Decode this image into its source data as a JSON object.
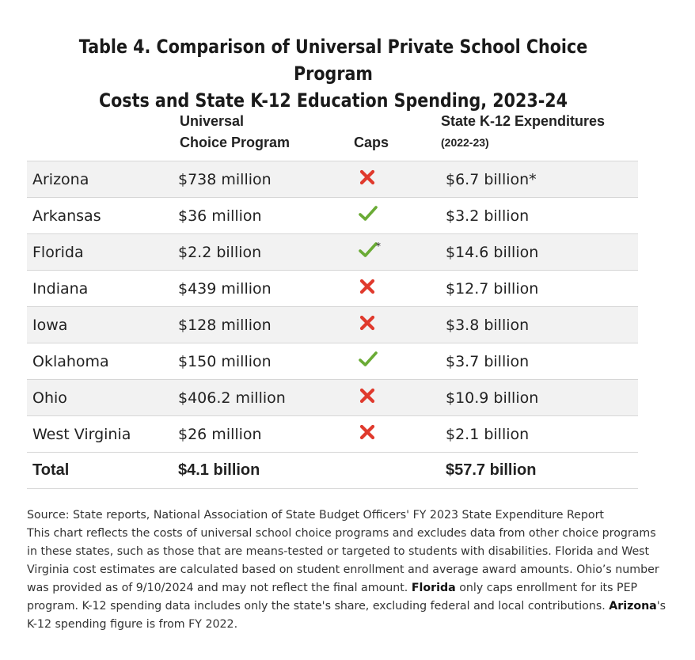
{
  "title": {
    "line1": "Table 4. Comparison of Universal Private School Choice Program",
    "line2": "Costs and State K-12 Education Spending, 2023-24"
  },
  "headers": {
    "program_line1": "Universal",
    "program_line2": "Choice Program",
    "caps": "Caps",
    "expend": "State K-12 Expenditures",
    "expend_sub": "(2022-23)"
  },
  "rows": [
    {
      "state": "Arizona",
      "program": "$738 million",
      "caps": "no",
      "caps_mark": "",
      "expend": "$6.7 billion*"
    },
    {
      "state": "Arkansas",
      "program": "$36 million",
      "caps": "yes",
      "caps_mark": "",
      "expend": "$3.2 billion"
    },
    {
      "state": "Florida",
      "program": "$2.2 billion",
      "caps": "yes",
      "caps_mark": "*",
      "expend": "$14.6 billion"
    },
    {
      "state": "Indiana",
      "program": "$439 million",
      "caps": "no",
      "caps_mark": "",
      "expend": "$12.7 billion"
    },
    {
      "state": "Iowa",
      "program": "$128 million",
      "caps": "no",
      "caps_mark": "",
      "expend": "$3.8 billion"
    },
    {
      "state": "Oklahoma",
      "program": "$150 million",
      "caps": "yes",
      "caps_mark": "",
      "expend": "$3.7 billion"
    },
    {
      "state": "Ohio",
      "program": "$406.2 million",
      "caps": "no",
      "caps_mark": "",
      "expend": "$10.9 billion"
    },
    {
      "state": "West Virginia",
      "program": "$26 million",
      "caps": "no",
      "caps_mark": "",
      "expend": "$2.1 billion"
    }
  ],
  "total": {
    "label": "Total",
    "program": "$4.1 billion",
    "expend": "$57.7 billion"
  },
  "icons": {
    "yes": "check-icon",
    "no": "x-icon"
  },
  "colors": {
    "check": "#6aab35",
    "cross": "#e03a2d",
    "row_shade": "#f2f2f2"
  },
  "source": {
    "p1": "Source: State reports, National Association of State Budget Officers' FY 2023 State Expenditure Report",
    "p2": "This chart reflects the costs of universal school choice programs and excludes data from other choice programs in these states, such as those that are means-tested or targeted to students with disabilities. Florida and West Virginia cost estimates are calculated based on student enrollment and average award amounts. Ohio’s number was provided as of 9/10/2024 and may not reflect the final amount.",
    "florida_bold": "Florida",
    "p3": " only caps enrollment for its PEP program. K-12 spending data includes only the state's share, excluding federal and local contributions. ",
    "arizona_bold": "Arizona",
    "p4": "'s K-12 spending figure is from FY 2022."
  }
}
